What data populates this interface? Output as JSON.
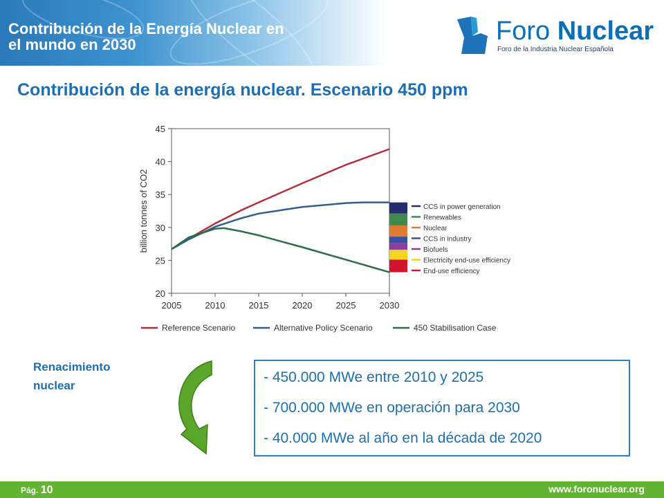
{
  "header": {
    "banner_title_line1": "Contribución de la Energía Nuclear en",
    "banner_title_line2": "el mundo en 2030",
    "logo_word1": "Foro ",
    "logo_word2": "Nuclear",
    "logo_tagline": "Foro de la Industria Nuclear Española"
  },
  "slide_title": "Contribución de la energía nuclear. Escenario 450 ppm",
  "chart_data": {
    "type": "line",
    "ylabel": "billion tonnes of CO2",
    "ylim": [
      20,
      45
    ],
    "yticks": [
      20,
      25,
      30,
      35,
      40,
      45
    ],
    "xlim": [
      2005,
      2030
    ],
    "xticks": [
      2005,
      2010,
      2015,
      2020,
      2025,
      2030
    ],
    "grid": false,
    "series": [
      {
        "name": "Reference Scenario",
        "color": "#b22f3a",
        "points": [
          [
            2005,
            26.7
          ],
          [
            2007,
            28.3
          ],
          [
            2010,
            30.6
          ],
          [
            2013,
            32.6
          ],
          [
            2015,
            33.8
          ],
          [
            2020,
            36.7
          ],
          [
            2025,
            39.5
          ],
          [
            2030,
            41.9
          ]
        ]
      },
      {
        "name": "Alternative Policy Scenario",
        "color": "#2f5d94",
        "points": [
          [
            2005,
            26.7
          ],
          [
            2007,
            28.2
          ],
          [
            2010,
            30.1
          ],
          [
            2013,
            31.4
          ],
          [
            2015,
            32.1
          ],
          [
            2020,
            33.1
          ],
          [
            2025,
            33.7
          ],
          [
            2027,
            33.8
          ],
          [
            2030,
            33.8
          ]
        ]
      },
      {
        "name": "450 Stabilisation Case",
        "color": "#2c6e45",
        "points": [
          [
            2005,
            26.7
          ],
          [
            2007,
            28.5
          ],
          [
            2010,
            29.8
          ],
          [
            2011,
            29.9
          ],
          [
            2013,
            29.4
          ],
          [
            2015,
            28.8
          ],
          [
            2020,
            27.0
          ],
          [
            2025,
            25.1
          ],
          [
            2030,
            23.2
          ]
        ]
      }
    ],
    "wedges": [
      {
        "label": "CCS in power generation",
        "color": "#262d6e",
        "from": 33.8,
        "to": 32.1
      },
      {
        "label": "Renewables",
        "color": "#3f8a4a",
        "from": 32.1,
        "to": 30.3
      },
      {
        "label": "Nuclear",
        "color": "#e07a30",
        "from": 30.3,
        "to": 28.6
      },
      {
        "label": "CCS in industry",
        "color": "#3b4fa0",
        "from": 28.6,
        "to": 27.6
      },
      {
        "label": "Biofuels",
        "color": "#8a3f9a",
        "from": 27.6,
        "to": 26.6
      },
      {
        "label": "Electricity end-use efficiency",
        "color": "#f5d31f",
        "from": 26.6,
        "to": 25.1
      },
      {
        "label": "End-use efficiency",
        "color": "#d2132a",
        "from": 25.1,
        "to": 23.2
      }
    ]
  },
  "renacimiento_line1": "Renacimiento",
  "renacimiento_line2": "nuclear",
  "bullets": [
    "- 450.000 MWe entre 2010 y 2025",
    "- 700.000 MWe en operación para 2030",
    "- 40.000 MWe al año en la década de 2020"
  ],
  "footer": {
    "page_prefix": "Pág. ",
    "page_number": "10",
    "url": "www.foronuclear.org"
  }
}
